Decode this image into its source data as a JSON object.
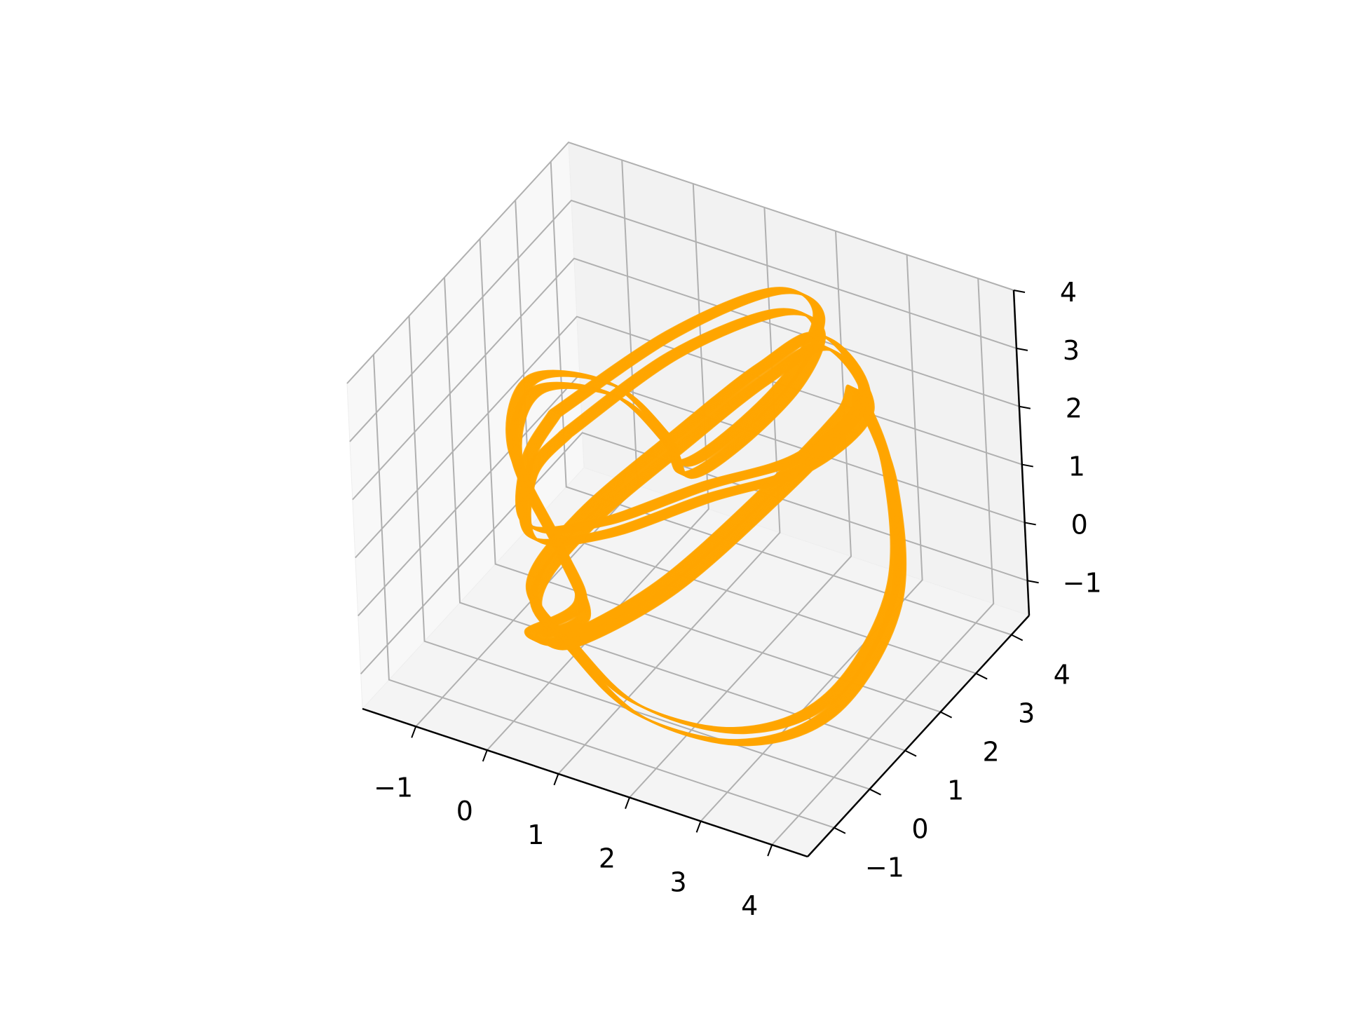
{
  "chart_data": {
    "type": "line3d",
    "title": "",
    "xlabel": "",
    "ylabel": "",
    "zlabel": "",
    "xlim": [
      -1.75,
      4.5
    ],
    "ylim": [
      -1.75,
      4.5
    ],
    "zlim": [
      -1.6,
      4.0
    ],
    "x_ticks": [
      "−1",
      "0",
      "1",
      "2",
      "3",
      "4"
    ],
    "y_ticks": [
      "−1",
      "0",
      "1",
      "2",
      "3",
      "4"
    ],
    "z_ticks": [
      "−1",
      "0",
      "1",
      "2",
      "3",
      "4"
    ],
    "grid": true,
    "legend": false,
    "series_color": "#ffa500",
    "pane_colors": [
      "#f2f2f2",
      "#f8f8f8",
      "#f4f4f4"
    ],
    "grid_color": "#b0b0b0",
    "series": [
      {
        "description_free": true,
        "strands": [
          [
            [
              -0.9,
              2.2,
              1.2
            ],
            [
              0.3,
              3.2,
              2.4
            ],
            [
              1.6,
              3.6,
              3.4
            ],
            [
              2.4,
              3.2,
              3.6
            ],
            [
              2.4,
              2.4,
              3.1
            ],
            [
              1.8,
              1.8,
              2.2
            ],
            [
              1.2,
              1.6,
              1.6
            ],
            [
              0.7,
              2.1,
              1.6
            ],
            [
              -0.3,
              2.6,
              1.7
            ],
            [
              -1.3,
              2.4,
              1.5
            ],
            [
              -1.2,
              1.6,
              0.9
            ],
            [
              -0.2,
              0.8,
              0.2
            ],
            [
              0.4,
              0.2,
              -0.2
            ],
            [
              0.1,
              -0.6,
              -0.3
            ],
            [
              0.8,
              -1.1,
              0.2
            ],
            [
              2.0,
              -0.6,
              1.3
            ],
            [
              3.0,
              0.6,
              2.6
            ],
            [
              3.4,
              1.8,
              3.2
            ],
            [
              3.2,
              2.6,
              3.0
            ],
            [
              3.6,
              2.6,
              1.8
            ],
            [
              4.0,
              1.8,
              0.4
            ],
            [
              3.6,
              0.8,
              -0.9
            ],
            [
              2.6,
              0.2,
              -1.5
            ],
            [
              1.4,
              -0.3,
              -1.2
            ],
            [
              0.6,
              -0.5,
              -0.3
            ],
            [
              0.2,
              -0.7,
              0.6
            ],
            [
              0.7,
              -0.2,
              1.7
            ],
            [
              1.6,
              0.9,
              2.8
            ],
            [
              2.2,
              2.0,
              3.4
            ],
            [
              2.6,
              2.9,
              3.5
            ],
            [
              3.1,
              3.0,
              2.6
            ],
            [
              2.6,
              2.2,
              1.9
            ],
            [
              1.6,
              1.4,
              1.5
            ],
            [
              0.5,
              0.7,
              0.9
            ],
            [
              -0.5,
              0.6,
              0.5
            ],
            [
              -0.9,
              1.4,
              0.9
            ],
            [
              -0.9,
              2.2,
              1.2
            ]
          ],
          [
            [
              -0.7,
              2.1,
              1.0
            ],
            [
              0.4,
              3.0,
              2.2
            ],
            [
              1.7,
              3.4,
              3.2
            ],
            [
              2.5,
              3.0,
              3.5
            ],
            [
              2.5,
              2.3,
              3.0
            ],
            [
              1.9,
              1.7,
              2.1
            ],
            [
              1.3,
              1.5,
              1.5
            ],
            [
              0.8,
              2.0,
              1.5
            ],
            [
              -0.2,
              2.5,
              1.6
            ],
            [
              -1.2,
              2.3,
              1.4
            ],
            [
              -1.1,
              1.5,
              0.8
            ],
            [
              -0.1,
              0.7,
              0.1
            ],
            [
              0.5,
              0.1,
              -0.3
            ],
            [
              0.2,
              -0.5,
              -0.4
            ],
            [
              0.9,
              -1.0,
              0.1
            ],
            [
              2.1,
              -0.5,
              1.2
            ],
            [
              3.1,
              0.7,
              2.5
            ],
            [
              3.5,
              1.9,
              3.1
            ],
            [
              3.3,
              2.5,
              2.9
            ],
            [
              3.7,
              2.5,
              1.7
            ],
            [
              4.1,
              1.7,
              0.3
            ],
            [
              3.7,
              0.7,
              -1.0
            ],
            [
              2.7,
              0.1,
              -1.6
            ],
            [
              1.5,
              -0.4,
              -1.3
            ],
            [
              0.7,
              -0.6,
              -0.4
            ],
            [
              0.3,
              -0.8,
              0.5
            ],
            [
              0.8,
              -0.3,
              1.6
            ],
            [
              1.7,
              0.8,
              2.7
            ],
            [
              2.3,
              1.9,
              3.3
            ],
            [
              2.7,
              2.8,
              3.4
            ],
            [
              3.2,
              2.9,
              2.5
            ],
            [
              2.7,
              2.1,
              1.8
            ],
            [
              1.7,
              1.3,
              1.4
            ],
            [
              0.6,
              0.6,
              0.8
            ],
            [
              -0.4,
              0.5,
              0.4
            ],
            [
              -0.8,
              1.3,
              0.8
            ],
            [
              -0.7,
              2.1,
              1.0
            ]
          ]
        ]
      }
    ]
  }
}
